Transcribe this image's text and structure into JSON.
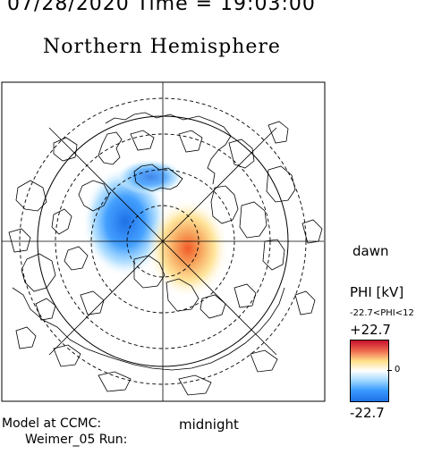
{
  "header": {
    "datetime": "07/28/2020 Time = 19:03:00",
    "title": "Northern Hemisphere"
  },
  "map": {
    "projection": "polar-stereographic",
    "pole": "north",
    "directions": {
      "right": "dawn",
      "bottom": "midnight"
    },
    "colors": {
      "negative": "#1e70e6",
      "positive": "#f05a28",
      "coast": "#000000"
    }
  },
  "labels": {
    "dawn": "dawn",
    "midnight": "midnight",
    "model_line1": "Model at CCMC:",
    "model_line2": "Weimer_05 Run:"
  },
  "colorbar": {
    "title": "PHI [kV]",
    "range_text": "-22.7<PHI<12",
    "max_label": "+22.7",
    "min_label": "-22.7",
    "zero_label": "0",
    "min": -22.7,
    "max": 22.7
  }
}
